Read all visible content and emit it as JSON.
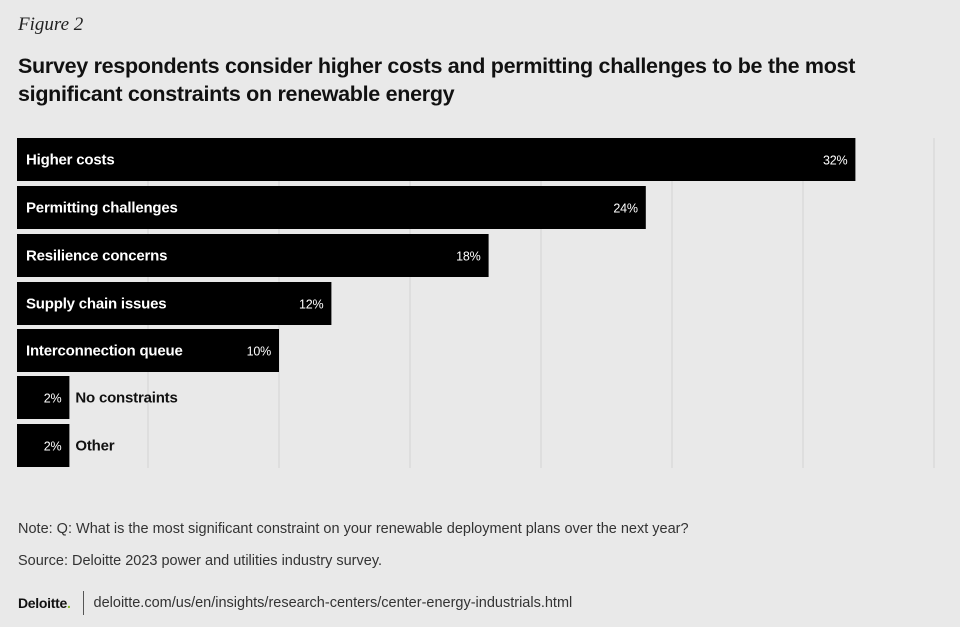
{
  "figure_label": "Figure 2",
  "chart_data": {
    "type": "bar",
    "orientation": "horizontal",
    "title": "Survey respondents consider higher costs and permitting challenges to be the most significant constraints on renewable energy",
    "categories": [
      "Higher costs",
      "Permitting challenges",
      "Resilience concerns",
      "Supply chain issues",
      "Interconnection queue",
      "No constraints",
      "Other"
    ],
    "values": [
      32,
      24,
      18,
      12,
      10,
      2,
      2
    ],
    "value_labels": [
      "32%",
      "24%",
      "18%",
      "12%",
      "10%",
      "2%",
      "2%"
    ],
    "xlim": [
      0,
      35
    ],
    "grid": true,
    "bar_color": "#000000"
  },
  "note": "Note: Q: What is the most significant constraint on your renewable deployment plans over the next year?",
  "source": "Source: Deloitte 2023 power and utilities industry survey.",
  "footer": {
    "logo_text": "Deloitte",
    "logo_dot": ".",
    "url": "deloitte.com/us/en/insights/research-centers/center-energy-industrials.html"
  },
  "colors": {
    "background": "#e9e9e9",
    "bar": "#000000",
    "grid": "#d2d2d2",
    "accent_green": "#86bc25"
  }
}
